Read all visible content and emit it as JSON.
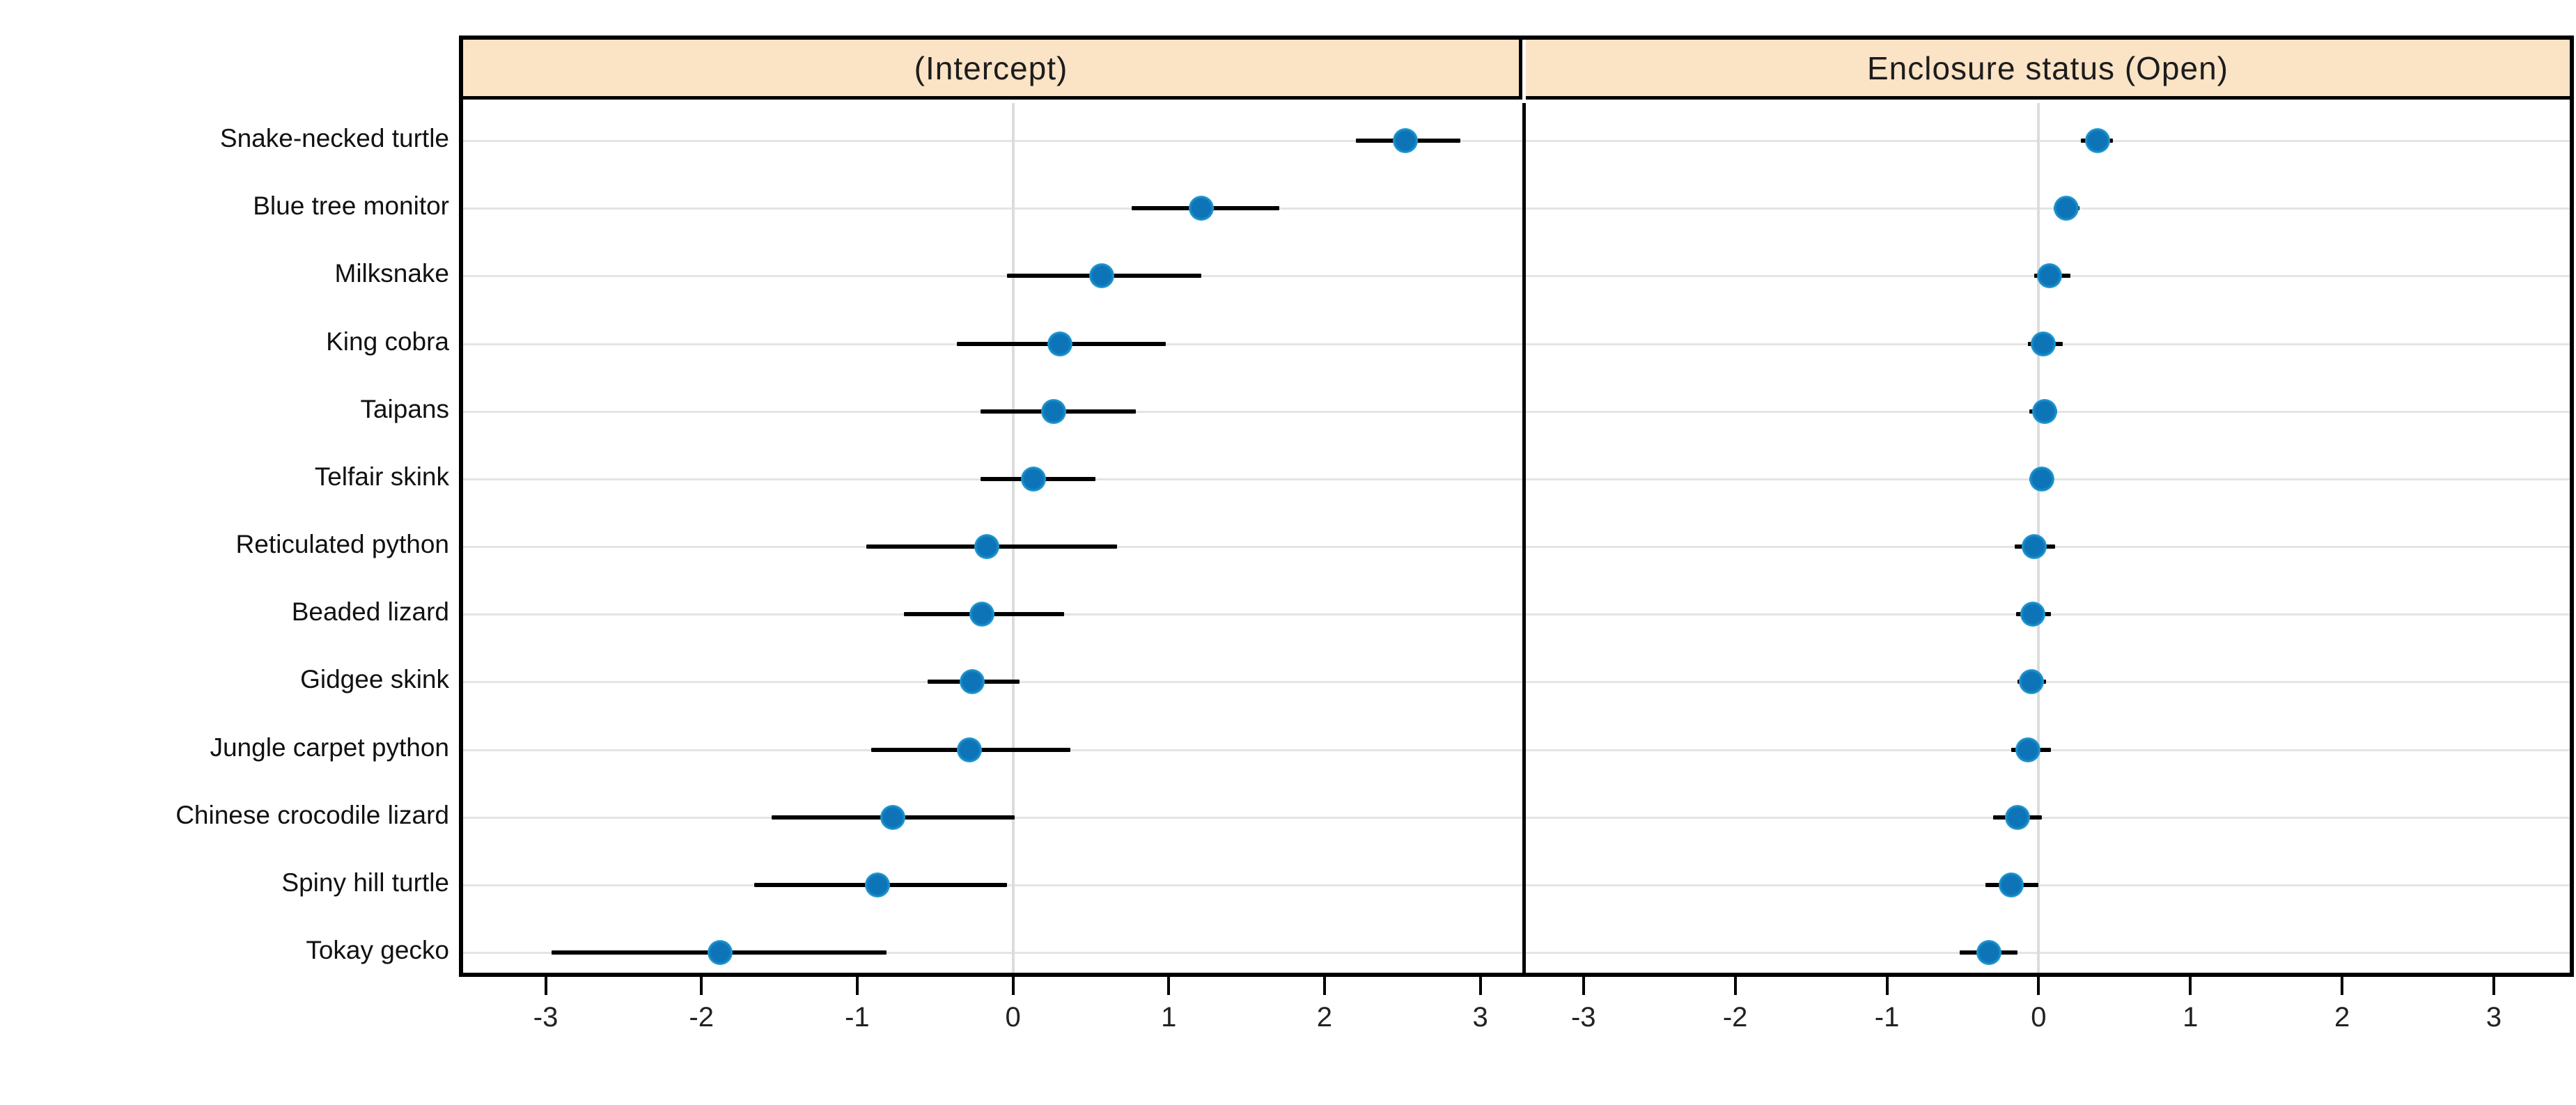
{
  "chart_data": {
    "type": "dotplot",
    "description": "Two-panel caterpillar / forest plot of random effects per species with 95% intervals",
    "categories": [
      "Snake-necked turtle",
      "Blue tree monitor",
      "Milksnake",
      "King cobra",
      "Taipans",
      "Telfair skink",
      "Reticulated python",
      "Beaded lizard",
      "Gidgee skink",
      "Jungle carpet python",
      "Chinese crocodile lizard",
      "Spiny hill turtle",
      "Tokay gecko"
    ],
    "x_ticks": [
      -3,
      -2,
      -1,
      0,
      1,
      2,
      3
    ],
    "grid": {
      "horizontal_gridlines": true,
      "vertical_zero_line": true,
      "legend": "none"
    },
    "panels": [
      {
        "title": "(Intercept)",
        "xlim": [
          -3.53,
          3.27
        ],
        "estimates": [
          2.52,
          1.21,
          0.57,
          0.3,
          0.26,
          0.13,
          -0.17,
          -0.2,
          -0.26,
          -0.28,
          -0.77,
          -0.87,
          -1.88
        ],
        "ci_low": [
          2.2,
          0.76,
          -0.04,
          -0.36,
          -0.21,
          -0.21,
          -0.94,
          -0.7,
          -0.55,
          -0.91,
          -1.55,
          -1.66,
          -2.96
        ],
        "ci_high": [
          2.87,
          1.71,
          1.21,
          0.98,
          0.79,
          0.53,
          0.67,
          0.33,
          0.04,
          0.37,
          0.01,
          -0.04,
          -0.81
        ]
      },
      {
        "title": "Enclosure  status  (Open)",
        "xlim": [
          -3.38,
          3.5
        ],
        "estimates": [
          0.39,
          0.18,
          0.07,
          0.03,
          0.04,
          0.02,
          -0.03,
          -0.04,
          -0.05,
          -0.07,
          -0.14,
          -0.18,
          -0.33
        ],
        "ci_low": [
          0.28,
          0.1,
          -0.03,
          -0.07,
          -0.06,
          -0.06,
          -0.16,
          -0.15,
          -0.14,
          -0.18,
          -0.3,
          -0.35,
          -0.52
        ],
        "ci_high": [
          0.49,
          0.27,
          0.21,
          0.16,
          0.12,
          0.09,
          0.11,
          0.08,
          0.05,
          0.08,
          0.02,
          0.0,
          -0.14
        ]
      }
    ],
    "colors": {
      "point": "#0e74b8",
      "point_halo": "#5fd2ef",
      "interval_line": "#000000",
      "strip_background": "#fbe3c5",
      "panel_border": "#000000",
      "gridline": "#e4e4e4",
      "zero_line": "#dcdcdc",
      "text": "#111111"
    }
  }
}
